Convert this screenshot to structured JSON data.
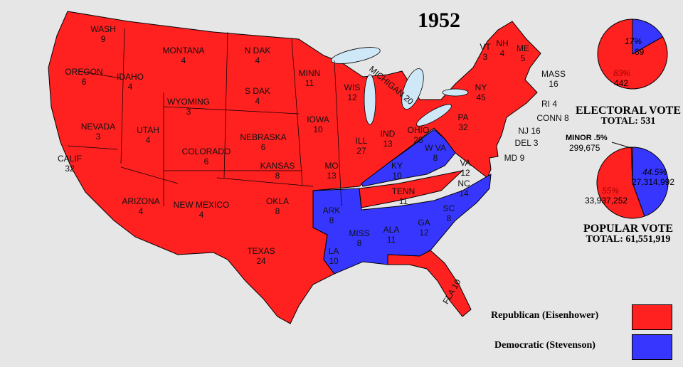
{
  "title": "1952",
  "colors": {
    "republican": "#ff2020",
    "democratic": "#3636ff",
    "lakes": "#cfe8f8",
    "background": "#e6e6e6"
  },
  "states": [
    {
      "name": "WASH",
      "votes": "9",
      "party": "R"
    },
    {
      "name": "OREGON",
      "votes": "6",
      "party": "R"
    },
    {
      "name": "CALIF",
      "votes": "32",
      "party": "R"
    },
    {
      "name": "IDAHO",
      "votes": "4",
      "party": "R"
    },
    {
      "name": "NEVADA",
      "votes": "3",
      "party": "R"
    },
    {
      "name": "MONTANA",
      "votes": "4",
      "party": "R"
    },
    {
      "name": "WYOMING",
      "votes": "3",
      "party": "R"
    },
    {
      "name": "UTAH",
      "votes": "4",
      "party": "R"
    },
    {
      "name": "ARIZONA",
      "votes": "4",
      "party": "R"
    },
    {
      "name": "COLORADO",
      "votes": "6",
      "party": "R"
    },
    {
      "name": "NEW MEXICO",
      "votes": "4",
      "party": "R"
    },
    {
      "name": "N DAK",
      "votes": "4",
      "party": "R"
    },
    {
      "name": "S DAK",
      "votes": "4",
      "party": "R"
    },
    {
      "name": "NEBRASKA",
      "votes": "6",
      "party": "R"
    },
    {
      "name": "KANSAS",
      "votes": "8",
      "party": "R"
    },
    {
      "name": "OKLA",
      "votes": "8",
      "party": "R"
    },
    {
      "name": "TEXAS",
      "votes": "24",
      "party": "R"
    },
    {
      "name": "MINN",
      "votes": "11",
      "party": "R"
    },
    {
      "name": "IOWA",
      "votes": "10",
      "party": "R"
    },
    {
      "name": "MO",
      "votes": "13",
      "party": "R"
    },
    {
      "name": "ARK",
      "votes": "8",
      "party": "D"
    },
    {
      "name": "LA",
      "votes": "10",
      "party": "D"
    },
    {
      "name": "WIS",
      "votes": "12",
      "party": "R"
    },
    {
      "name": "ILL",
      "votes": "27",
      "party": "R"
    },
    {
      "name": "MICHIGAN",
      "votes": "20",
      "party": "R"
    },
    {
      "name": "IND",
      "votes": "13",
      "party": "R"
    },
    {
      "name": "OHIO",
      "votes": "25",
      "party": "R"
    },
    {
      "name": "KY",
      "votes": "10",
      "party": "D"
    },
    {
      "name": "TENN",
      "votes": "11",
      "party": "R"
    },
    {
      "name": "MISS",
      "votes": "8",
      "party": "D"
    },
    {
      "name": "ALA",
      "votes": "11",
      "party": "D"
    },
    {
      "name": "GA",
      "votes": "12",
      "party": "D"
    },
    {
      "name": "FLA",
      "votes": "10",
      "party": "R"
    },
    {
      "name": "SC",
      "votes": "8",
      "party": "D"
    },
    {
      "name": "NC",
      "votes": "14",
      "party": "D"
    },
    {
      "name": "VA",
      "votes": "12",
      "party": "R"
    },
    {
      "name": "W VA",
      "votes": "8",
      "party": "D"
    },
    {
      "name": "PA",
      "votes": "32",
      "party": "R"
    },
    {
      "name": "NY",
      "votes": "45",
      "party": "R"
    },
    {
      "name": "VT",
      "votes": "3",
      "party": "R"
    },
    {
      "name": "NH",
      "votes": "4",
      "party": "R"
    },
    {
      "name": "ME",
      "votes": "5",
      "party": "R"
    },
    {
      "name": "MASS",
      "votes": "16",
      "party": "R"
    },
    {
      "name": "RI",
      "votes": "4",
      "party": "R"
    },
    {
      "name": "CONN",
      "votes": "8",
      "party": "R"
    },
    {
      "name": "NJ",
      "votes": "16",
      "party": "R"
    },
    {
      "name": "DEL",
      "votes": "3",
      "party": "R"
    },
    {
      "name": "MD",
      "votes": "9",
      "party": "R"
    }
  ],
  "electoral": {
    "dem_pct": "17%",
    "dem": "89",
    "rep_pct": "83%",
    "rep": "442",
    "dem_share": 0.168,
    "title": "ELECTORAL  VOTE",
    "total": "TOTAL:  531"
  },
  "popular": {
    "minor_label": "MINOR .5%",
    "minor": "299,675",
    "dem_pct": "44.5%",
    "dem": "27,314,992",
    "rep_pct": "55%",
    "rep": "33,937,252",
    "dem_share": 0.445,
    "minor_share": 0.005,
    "title": "POPULAR  VOTE",
    "total": "TOTAL:  61,551,919"
  },
  "legend": [
    {
      "label": "Republican (Eisenhower)",
      "color": "#ff2020"
    },
    {
      "label": "Democratic (Stevenson)",
      "color": "#3636ff"
    }
  ]
}
